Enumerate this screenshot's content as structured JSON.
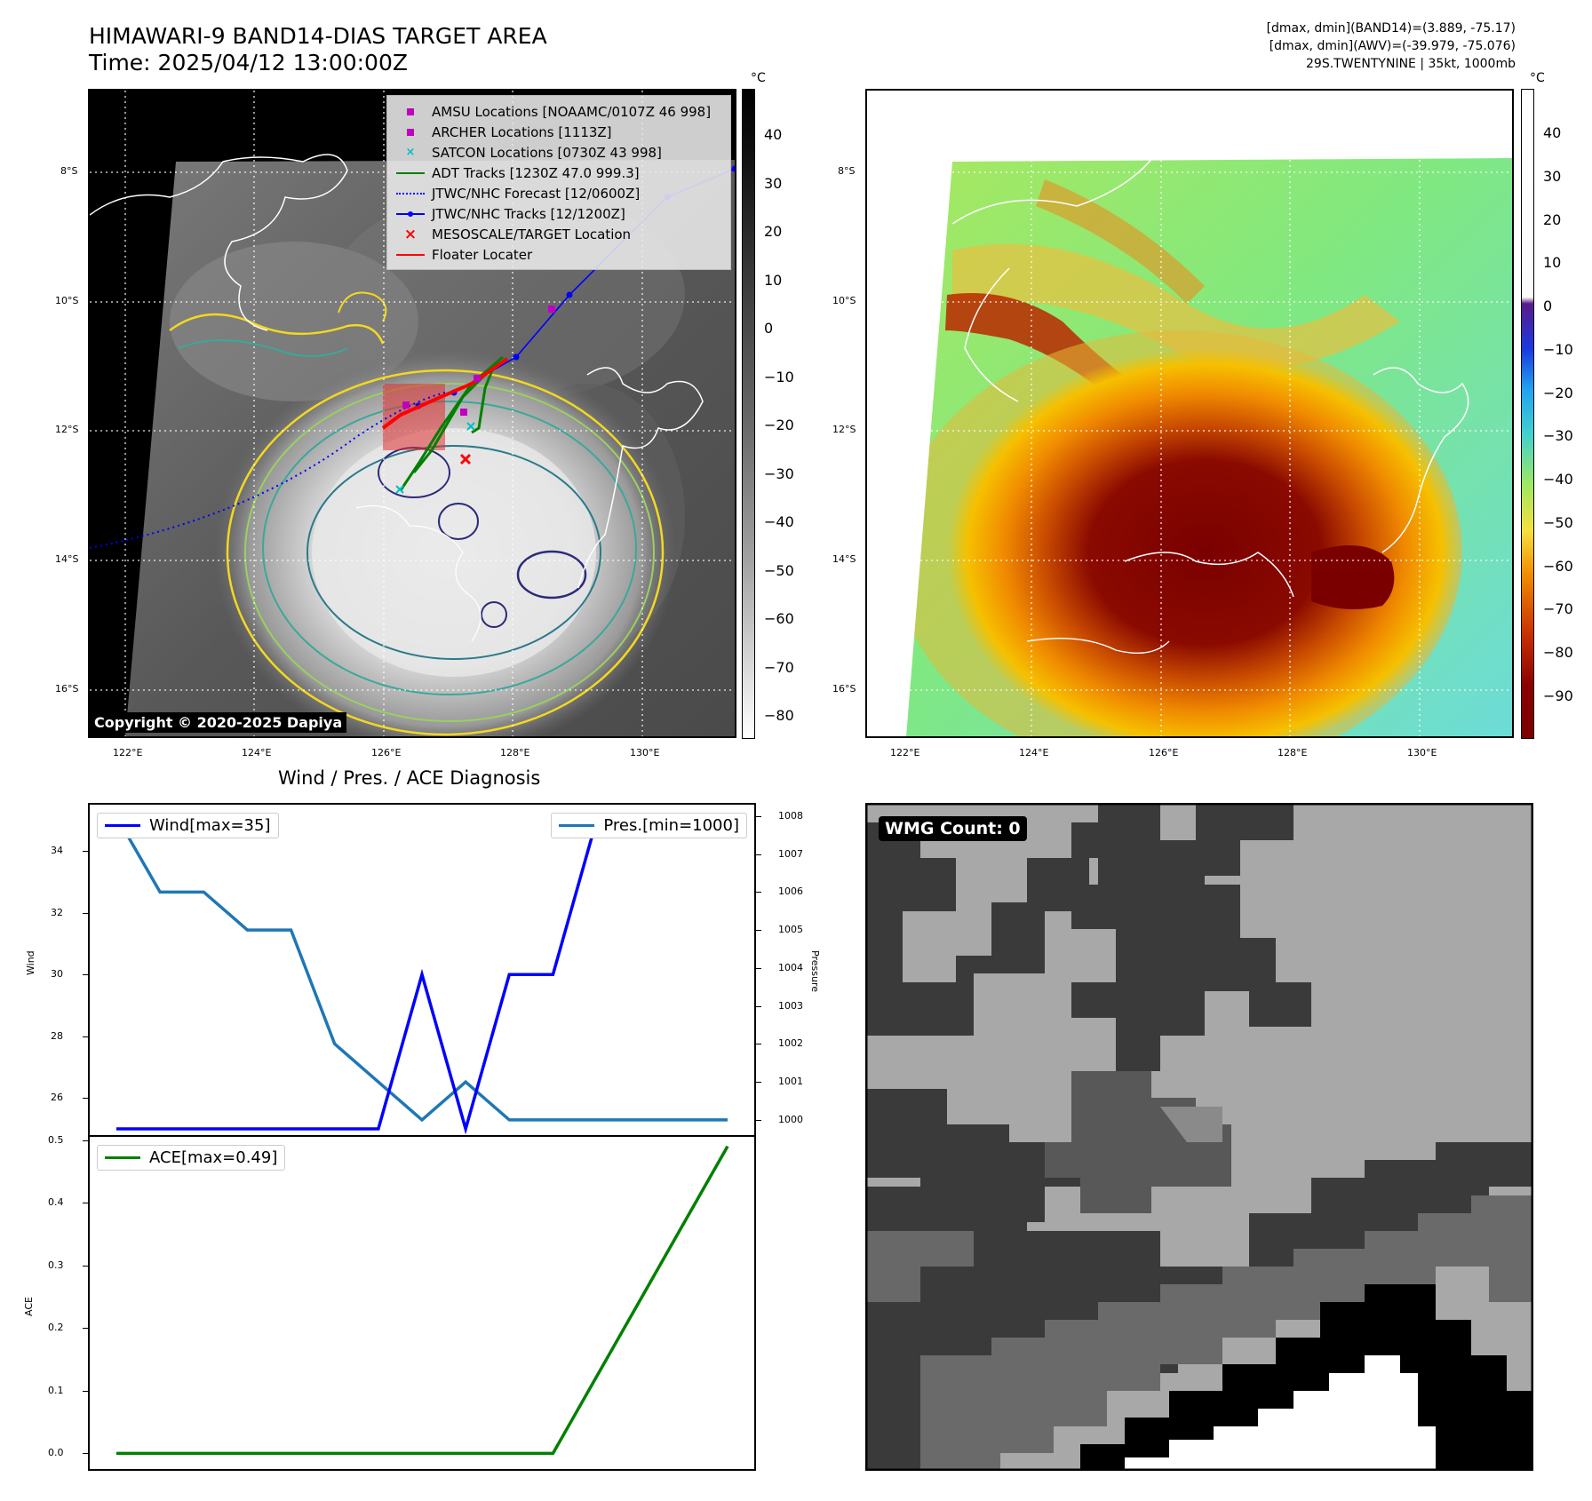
{
  "header": {
    "title_line1": "HIMAWARI-9 BAND14-DIAS TARGET AREA",
    "title_line2": "Time: 2025/04/12 13:00:00Z",
    "stats_line1": "[dmax, dmin](BAND14)=(3.889, -75.17)",
    "stats_line2": "[dmax, dmin](AWV)=(-39.979, -75.076)",
    "stats_line3": "29S.TWENTYNINE | 35kt, 1000mb"
  },
  "maps": {
    "lat_labels": [
      "8°S",
      "10°S",
      "12°S",
      "14°S",
      "16°S"
    ],
    "lon_labels": [
      "122°E",
      "124°E",
      "126°E",
      "128°E",
      "130°E"
    ],
    "copyright": "Copyright © 2020-2025 Dapiya",
    "legend": [
      {
        "label": "AMSU Locations [NOAAMC/0107Z 46 998]",
        "symbol": "square",
        "color": "#c000c0"
      },
      {
        "label": "ARCHER Locations [1113Z]",
        "symbol": "square",
        "color": "#c000c0"
      },
      {
        "label": "SATCON Locations [0730Z 43 998]",
        "symbol": "x",
        "color": "#00c0c0"
      },
      {
        "label": "ADT Tracks [1230Z 47.0 999.3]",
        "symbol": "line",
        "color": "#008000"
      },
      {
        "label": "JTWC/NHC Forecast [12/0600Z]",
        "symbol": "dotted",
        "color": "#0000ff"
      },
      {
        "label": "JTWC/NHC Tracks [12/1200Z]",
        "symbol": "linedot",
        "color": "#0000ff"
      },
      {
        "label": "MESOSCALE/TARGET Location",
        "symbol": "x",
        "color": "#ff0000"
      },
      {
        "label": "Floater Locater",
        "symbol": "line",
        "color": "#ff0000"
      }
    ]
  },
  "colorbars": {
    "unit": "°C",
    "left_ticks": [
      "40",
      "30",
      "20",
      "10",
      "0",
      "−10",
      "−20",
      "−30",
      "−40",
      "−50",
      "−60",
      "−70",
      "−80"
    ],
    "right_ticks": [
      "40",
      "30",
      "20",
      "10",
      "0",
      "−10",
      "−20",
      "−30",
      "−40",
      "−50",
      "−60",
      "−70",
      "−80",
      "−90"
    ]
  },
  "wmg": {
    "label": "WMG Count: 0"
  },
  "chart_data": [
    {
      "type": "line",
      "title": "Wind / Pres. / ACE Diagnosis",
      "ylabel": "Wind",
      "ylabel_right": "Pressure",
      "ylim": [
        24.8,
        35.5
      ],
      "ylim_right": [
        999.6,
        1008.3
      ],
      "yticks": [
        26,
        28,
        30,
        32,
        34
      ],
      "yticks_right": [
        1000,
        1001,
        1002,
        1003,
        1004,
        1005,
        1006,
        1007,
        1008
      ],
      "series": [
        {
          "name": "Wind[max=35]",
          "color": "#0000ff",
          "values": [
            25,
            25,
            25,
            25,
            25,
            25,
            25,
            30,
            25,
            30,
            30,
            35,
            35,
            35,
            35
          ]
        },
        {
          "name": "Pres.[min=1000]",
          "color": "#1f77b4",
          "axis": "right",
          "values": [
            1008,
            1006,
            1006,
            1005,
            1005,
            1002,
            1001,
            1000,
            1001,
            1000,
            1000,
            1000,
            1000,
            1000,
            1000
          ]
        }
      ]
    },
    {
      "type": "line",
      "ylabel": "ACE",
      "ylim": [
        -0.025,
        0.505
      ],
      "yticks": [
        0.0,
        0.1,
        0.2,
        0.3,
        0.4,
        0.5
      ],
      "series": [
        {
          "name": "ACE[max=0.49]",
          "color": "#008000",
          "values": [
            0,
            0,
            0,
            0,
            0,
            0,
            0,
            0,
            0,
            0,
            0,
            0.1225,
            0.245,
            0.3675,
            0.49
          ]
        }
      ]
    }
  ]
}
